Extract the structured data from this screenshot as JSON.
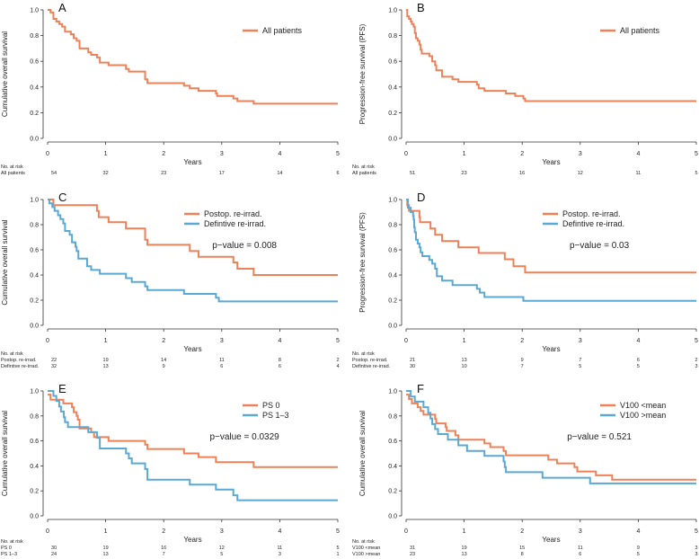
{
  "colors": {
    "orange": "#EE8158",
    "blue": "#5AA9D4"
  },
  "chart_data": [
    {
      "type": "line",
      "panel": "A",
      "ylabel": "Cumulative overall survival",
      "xlabel": "Years",
      "xlim": [
        0,
        5
      ],
      "ylim": [
        0,
        1
      ],
      "xticks": [
        "0",
        "1",
        "2",
        "3",
        "4",
        "5"
      ],
      "yticks": [
        "0.0",
        "0.2",
        "0.4",
        "0.6",
        "0.8",
        "1.0"
      ],
      "legend": [
        "All patients"
      ],
      "p_value": null,
      "risk_title": "No. at risk",
      "series": [
        {
          "name": "All patients",
          "color": "orange",
          "risk": [
            "54",
            "32",
            "23",
            "17",
            "14",
            "6"
          ],
          "steps": [
            [
              0,
              1
            ],
            [
              0.05,
              0.98
            ],
            [
              0.1,
              0.93
            ],
            [
              0.15,
              0.91
            ],
            [
              0.2,
              0.89
            ],
            [
              0.25,
              0.87
            ],
            [
              0.3,
              0.83
            ],
            [
              0.4,
              0.81
            ],
            [
              0.45,
              0.78
            ],
            [
              0.5,
              0.76
            ],
            [
              0.55,
              0.7
            ],
            [
              0.7,
              0.67
            ],
            [
              0.75,
              0.65
            ],
            [
              0.85,
              0.63
            ],
            [
              0.9,
              0.59
            ],
            [
              1.05,
              0.57
            ],
            [
              1.35,
              0.54
            ],
            [
              1.4,
              0.52
            ],
            [
              1.68,
              0.46
            ],
            [
              1.72,
              0.43
            ],
            [
              2.35,
              0.41
            ],
            [
              2.45,
              0.39
            ],
            [
              2.6,
              0.37
            ],
            [
              2.9,
              0.35
            ],
            [
              2.92,
              0.33
            ],
            [
              3.2,
              0.31
            ],
            [
              3.27,
              0.29
            ],
            [
              3.55,
              0.27
            ]
          ]
        }
      ]
    },
    {
      "type": "line",
      "panel": "B",
      "ylabel": "Progression-free survival (PFS)",
      "xlabel": "Years",
      "xlim": [
        0,
        5
      ],
      "ylim": [
        0,
        1
      ],
      "xticks": [
        "0",
        "1",
        "2",
        "3",
        "4",
        "5"
      ],
      "yticks": [
        "0.0",
        "0.2",
        "0.4",
        "0.6",
        "0.8",
        "1.0"
      ],
      "legend": [
        "All patients"
      ],
      "p_value": null,
      "risk_title": "No. at risk",
      "series": [
        {
          "name": "All patients",
          "color": "orange",
          "risk": [
            "51",
            "23",
            "16",
            "12",
            "11",
            "5"
          ],
          "steps": [
            [
              0,
              1
            ],
            [
              0.02,
              0.95
            ],
            [
              0.05,
              0.93
            ],
            [
              0.08,
              0.91
            ],
            [
              0.1,
              0.89
            ],
            [
              0.13,
              0.87
            ],
            [
              0.15,
              0.82
            ],
            [
              0.17,
              0.78
            ],
            [
              0.2,
              0.76
            ],
            [
              0.23,
              0.73
            ],
            [
              0.25,
              0.69
            ],
            [
              0.27,
              0.66
            ],
            [
              0.4,
              0.64
            ],
            [
              0.45,
              0.6
            ],
            [
              0.5,
              0.57
            ],
            [
              0.52,
              0.53
            ],
            [
              0.62,
              0.48
            ],
            [
              0.8,
              0.46
            ],
            [
              0.9,
              0.44
            ],
            [
              1.22,
              0.42
            ],
            [
              1.25,
              0.39
            ],
            [
              1.35,
              0.37
            ],
            [
              1.72,
              0.35
            ],
            [
              1.88,
              0.33
            ],
            [
              2.02,
              0.31
            ],
            [
              2.05,
              0.29
            ]
          ]
        }
      ]
    },
    {
      "type": "line",
      "panel": "C",
      "ylabel": "Cumulative overall survival",
      "xlabel": "Years",
      "xlim": [
        0,
        5
      ],
      "ylim": [
        0,
        1
      ],
      "xticks": [
        "0",
        "1",
        "2",
        "3",
        "4",
        "5"
      ],
      "yticks": [
        "0.0",
        "0.2",
        "0.4",
        "0.6",
        "0.8",
        "1.0"
      ],
      "legend": [
        "Postop. re-irrad.",
        "Defintive re-irrad."
      ],
      "p_value": "p−value = 0.008",
      "risk_title": "No. at risk",
      "series": [
        {
          "name": "Postop. re-irrad.",
          "color": "orange",
          "risk": [
            "22",
            "19",
            "14",
            "11",
            "8",
            "2"
          ],
          "steps": [
            [
              0,
              1
            ],
            [
              0.1,
              0.955
            ],
            [
              0.85,
              0.91
            ],
            [
              0.88,
              0.86
            ],
            [
              1.05,
              0.82
            ],
            [
              1.35,
              0.77
            ],
            [
              1.68,
              0.68
            ],
            [
              1.72,
              0.64
            ],
            [
              2.45,
              0.59
            ],
            [
              2.6,
              0.545
            ],
            [
              3.2,
              0.5
            ],
            [
              3.27,
              0.45
            ],
            [
              3.55,
              0.4
            ]
          ]
        },
        {
          "name": "Defintive re-irrad.",
          "color": "blue",
          "risk": [
            "32",
            "13",
            "9",
            "6",
            "6",
            "4"
          ],
          "steps": [
            [
              0,
              1
            ],
            [
              0.03,
              0.97
            ],
            [
              0.08,
              0.94
            ],
            [
              0.12,
              0.91
            ],
            [
              0.18,
              0.875
            ],
            [
              0.22,
              0.845
            ],
            [
              0.27,
              0.81
            ],
            [
              0.3,
              0.75
            ],
            [
              0.38,
              0.72
            ],
            [
              0.42,
              0.66
            ],
            [
              0.48,
              0.625
            ],
            [
              0.5,
              0.59
            ],
            [
              0.53,
              0.53
            ],
            [
              0.68,
              0.47
            ],
            [
              0.75,
              0.44
            ],
            [
              0.9,
              0.41
            ],
            [
              1.35,
              0.375
            ],
            [
              1.45,
              0.345
            ],
            [
              1.68,
              0.31
            ],
            [
              1.72,
              0.28
            ],
            [
              2.35,
              0.25
            ],
            [
              2.9,
              0.22
            ],
            [
              2.95,
              0.19
            ]
          ]
        }
      ]
    },
    {
      "type": "line",
      "panel": "D",
      "ylabel": "Progression-free survival (PFS)",
      "xlabel": "Years",
      "xlim": [
        0,
        5
      ],
      "ylim": [
        0,
        1
      ],
      "xticks": [
        "0",
        "1",
        "2",
        "3",
        "4",
        "5"
      ],
      "yticks": [
        "0.0",
        "0.2",
        "0.4",
        "0.6",
        "0.8",
        "1.0"
      ],
      "legend": [
        "Postop. re-irrad.",
        "Defintive re-irrad."
      ],
      "p_value": "p−value = 0.03",
      "risk_title": "No. at risk",
      "series": [
        {
          "name": "Postop. re-irrad.",
          "color": "orange",
          "risk": [
            "21",
            "13",
            "9",
            "7",
            "6",
            "2"
          ],
          "steps": [
            [
              0,
              1
            ],
            [
              0.02,
              0.955
            ],
            [
              0.05,
              0.91
            ],
            [
              0.23,
              0.86
            ],
            [
              0.24,
              0.82
            ],
            [
              0.42,
              0.77
            ],
            [
              0.5,
              0.72
            ],
            [
              0.62,
              0.67
            ],
            [
              0.9,
              0.62
            ],
            [
              1.25,
              0.575
            ],
            [
              1.7,
              0.525
            ],
            [
              1.85,
              0.47
            ],
            [
              2.05,
              0.42
            ]
          ]
        },
        {
          "name": "Defintive re-irrad.",
          "color": "blue",
          "risk": [
            "30",
            "10",
            "7",
            "5",
            "5",
            "3"
          ],
          "steps": [
            [
              0,
              1
            ],
            [
              0.03,
              0.935
            ],
            [
              0.08,
              0.9
            ],
            [
              0.12,
              0.87
            ],
            [
              0.13,
              0.84
            ],
            [
              0.14,
              0.78
            ],
            [
              0.15,
              0.74
            ],
            [
              0.17,
              0.68
            ],
            [
              0.2,
              0.65
            ],
            [
              0.23,
              0.62
            ],
            [
              0.25,
              0.58
            ],
            [
              0.28,
              0.55
            ],
            [
              0.4,
              0.52
            ],
            [
              0.45,
              0.49
            ],
            [
              0.5,
              0.45
            ],
            [
              0.53,
              0.39
            ],
            [
              0.62,
              0.355
            ],
            [
              0.8,
              0.32
            ],
            [
              1.22,
              0.29
            ],
            [
              1.27,
              0.26
            ],
            [
              1.35,
              0.225
            ],
            [
              2.02,
              0.195
            ]
          ]
        }
      ]
    },
    {
      "type": "line",
      "panel": "E",
      "ylabel": "Cumulative overall survival",
      "xlabel": "Years",
      "xlim": [
        0,
        5
      ],
      "ylim": [
        0,
        1
      ],
      "xticks": [
        "0",
        "1",
        "2",
        "3",
        "4",
        "5"
      ],
      "yticks": [
        "0.0",
        "0.2",
        "0.4",
        "0.6",
        "0.8",
        "1.0"
      ],
      "legend": [
        "PS 0",
        "PS 1–3"
      ],
      "p_value": "p−value = 0.0329",
      "risk_title": "No. at risk",
      "series": [
        {
          "name": "PS 0",
          "color": "orange",
          "risk": [
            "30",
            "19",
            "16",
            "12",
            "11",
            "5"
          ],
          "steps": [
            [
              0,
              0.97
            ],
            [
              0.05,
              0.93
            ],
            [
              0.27,
              0.9
            ],
            [
              0.42,
              0.87
            ],
            [
              0.45,
              0.83
            ],
            [
              0.5,
              0.8
            ],
            [
              0.52,
              0.77
            ],
            [
              0.55,
              0.7
            ],
            [
              0.75,
              0.67
            ],
            [
              0.8,
              0.63
            ],
            [
              1.05,
              0.6
            ],
            [
              1.68,
              0.57
            ],
            [
              1.72,
              0.535
            ],
            [
              2.35,
              0.5
            ],
            [
              2.6,
              0.47
            ],
            [
              2.9,
              0.43
            ],
            [
              3.55,
              0.39
            ]
          ]
        },
        {
          "name": "PS 1–3",
          "color": "blue",
          "risk": [
            "24",
            "13",
            "7",
            "5",
            "3",
            "1"
          ],
          "steps": [
            [
              0,
              1
            ],
            [
              0.1,
              0.96
            ],
            [
              0.15,
              0.92
            ],
            [
              0.2,
              0.875
            ],
            [
              0.23,
              0.835
            ],
            [
              0.28,
              0.79
            ],
            [
              0.3,
              0.75
            ],
            [
              0.35,
              0.71
            ],
            [
              0.7,
              0.67
            ],
            [
              0.85,
              0.625
            ],
            [
              0.9,
              0.54
            ],
            [
              1.35,
              0.5
            ],
            [
              1.4,
              0.46
            ],
            [
              1.45,
              0.42
            ],
            [
              1.68,
              0.375
            ],
            [
              1.72,
              0.29
            ],
            [
              2.45,
              0.25
            ],
            [
              2.9,
              0.21
            ],
            [
              3.2,
              0.165
            ],
            [
              3.27,
              0.125
            ]
          ]
        }
      ]
    },
    {
      "type": "line",
      "panel": "F",
      "ylabel": "Cumulative overall survival",
      "xlabel": "Years",
      "xlim": [
        0,
        5
      ],
      "ylim": [
        0,
        1
      ],
      "xticks": [
        "0",
        "1",
        "2",
        "3",
        "4",
        "5"
      ],
      "yticks": [
        "0.0",
        "0.2",
        "0.4",
        "0.6",
        "0.8",
        "1.0"
      ],
      "legend": [
        "V100 <mean",
        "V100 >mean"
      ],
      "p_value": "p−value = 0.521",
      "risk_title": "No. at risk",
      "series": [
        {
          "name": "V100 <mean",
          "color": "orange",
          "risk": [
            "31",
            "19",
            "15",
            "11",
            "9",
            "3"
          ],
          "steps": [
            [
              0,
              0.97
            ],
            [
              0.05,
              0.935
            ],
            [
              0.1,
              0.9
            ],
            [
              0.2,
              0.87
            ],
            [
              0.25,
              0.84
            ],
            [
              0.3,
              0.81
            ],
            [
              0.5,
              0.775
            ],
            [
              0.52,
              0.74
            ],
            [
              0.68,
              0.71
            ],
            [
              0.7,
              0.68
            ],
            [
              0.85,
              0.645
            ],
            [
              0.9,
              0.61
            ],
            [
              1.35,
              0.58
            ],
            [
              1.45,
              0.55
            ],
            [
              1.68,
              0.52
            ],
            [
              1.72,
              0.485
            ],
            [
              2.45,
              0.45
            ],
            [
              2.6,
              0.42
            ],
            [
              2.9,
              0.39
            ],
            [
              2.95,
              0.355
            ],
            [
              3.27,
              0.325
            ],
            [
              3.55,
              0.29
            ]
          ]
        },
        {
          "name": "V100 >mean",
          "color": "blue",
          "risk": [
            "23",
            "13",
            "8",
            "6",
            "5",
            "3"
          ],
          "steps": [
            [
              0,
              1
            ],
            [
              0.08,
              0.955
            ],
            [
              0.15,
              0.915
            ],
            [
              0.3,
              0.87
            ],
            [
              0.38,
              0.825
            ],
            [
              0.42,
              0.78
            ],
            [
              0.45,
              0.735
            ],
            [
              0.5,
              0.695
            ],
            [
              0.55,
              0.655
            ],
            [
              0.72,
              0.61
            ],
            [
              0.9,
              0.565
            ],
            [
              1.05,
              0.52
            ],
            [
              1.35,
              0.48
            ],
            [
              1.68,
              0.435
            ],
            [
              1.7,
              0.39
            ],
            [
              1.72,
              0.35
            ],
            [
              2.35,
              0.305
            ],
            [
              3.17,
              0.26
            ]
          ]
        }
      ]
    }
  ]
}
